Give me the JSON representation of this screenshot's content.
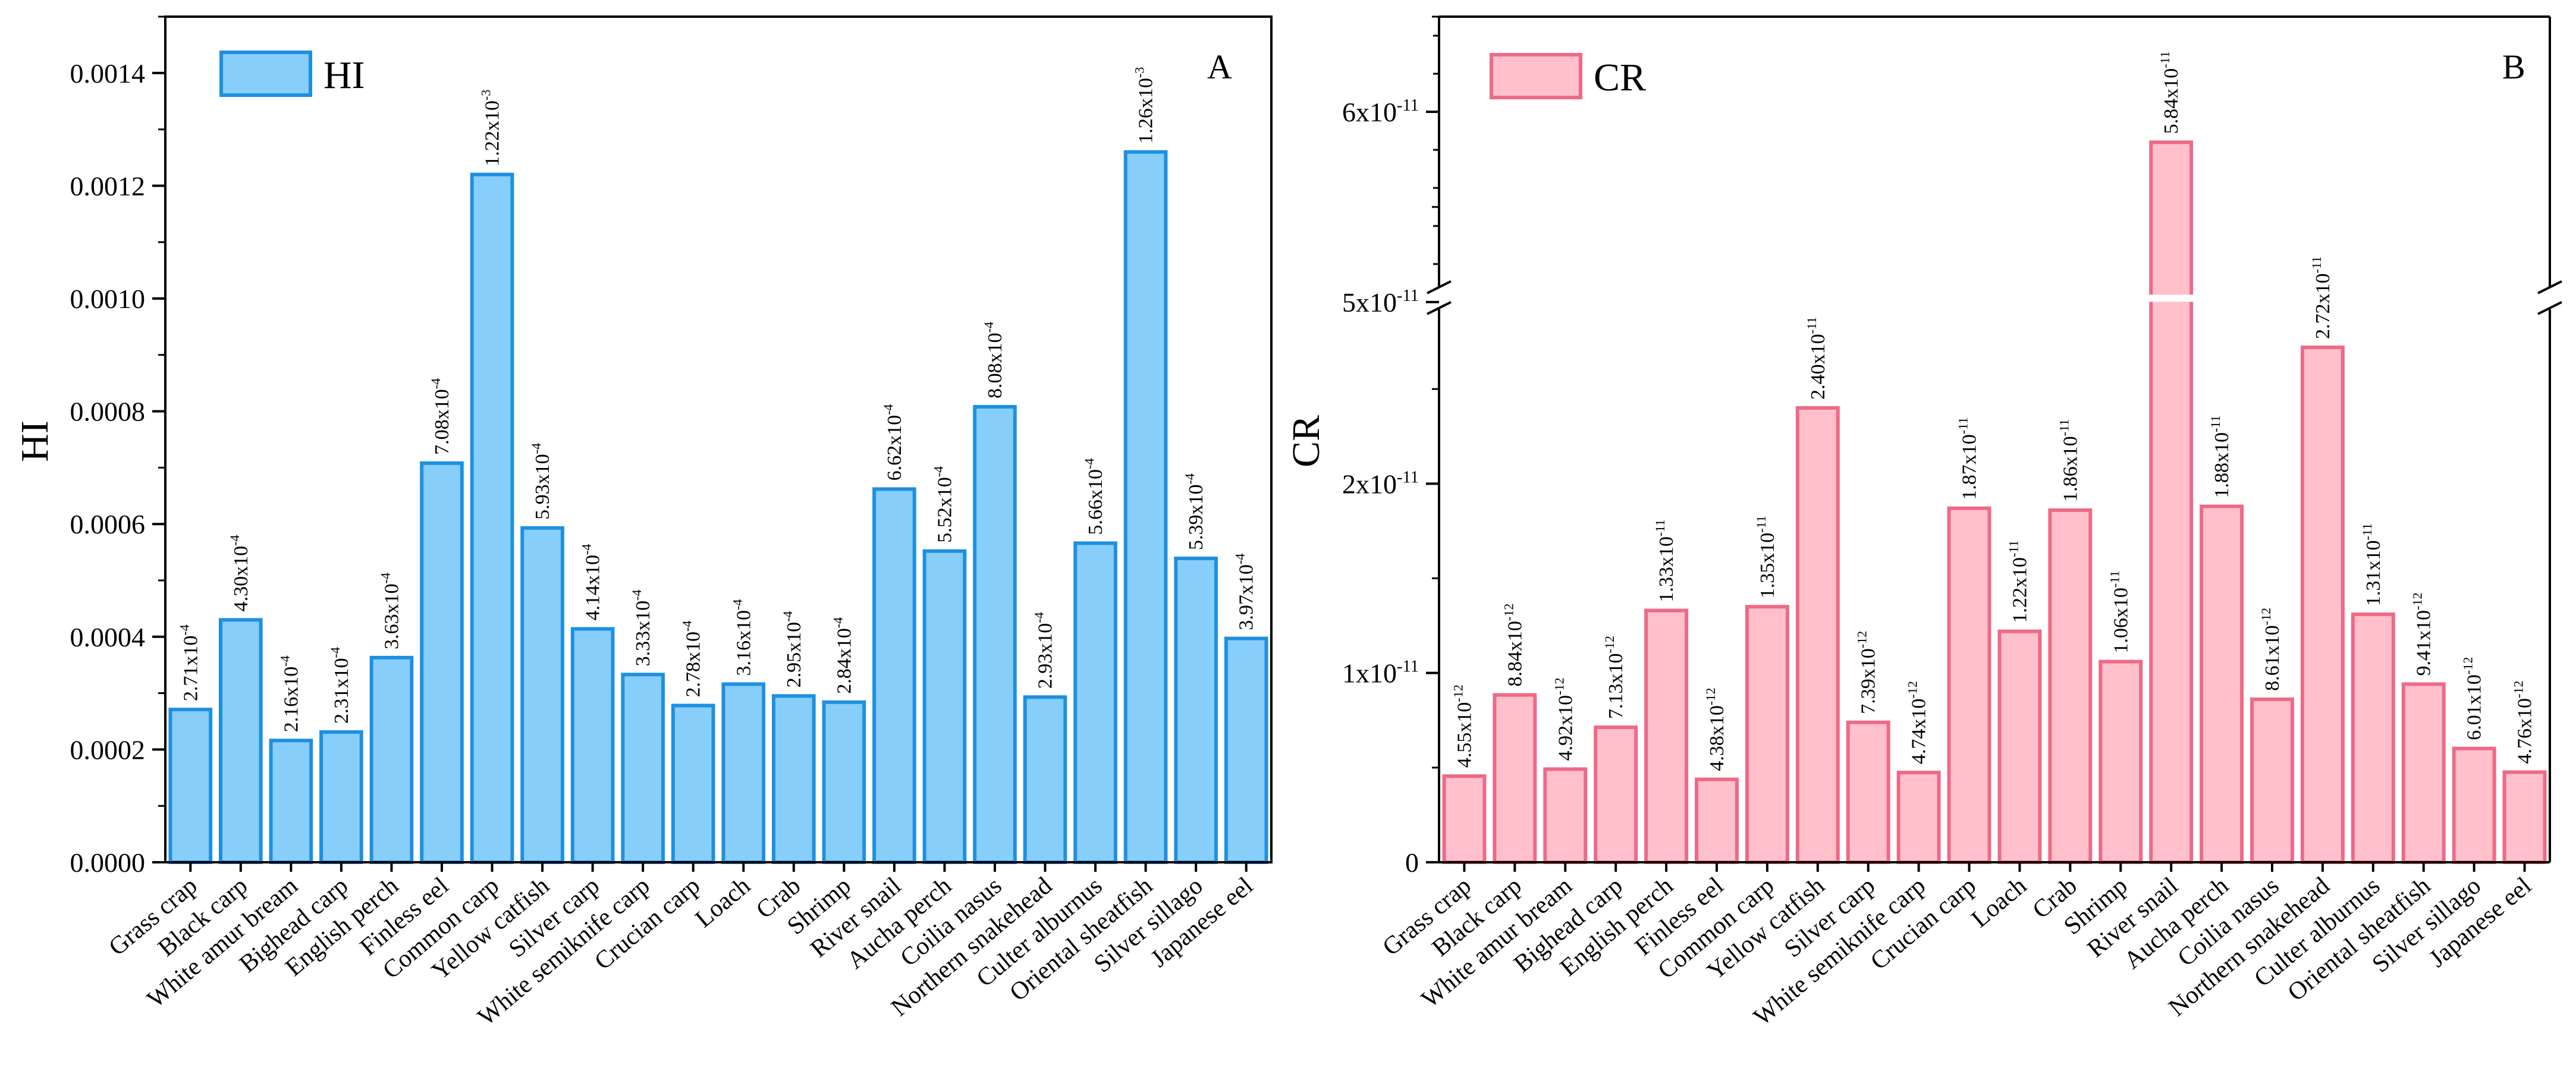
{
  "chart_data": [
    {
      "type": "bar",
      "panel": "A",
      "legend": "HI",
      "ylabel": "HI",
      "xlabel": "",
      "ylim": [
        0,
        0.0015
      ],
      "yticks": [
        0,
        0.0002,
        0.0004,
        0.0006,
        0.0008,
        0.001,
        0.0012,
        0.0014
      ],
      "ytick_labels": [
        "0.0000",
        "0.0002",
        "0.0004",
        "0.0006",
        "0.0008",
        "0.0010",
        "0.0012",
        "0.0014"
      ],
      "categories": [
        "Grass crap",
        "Black carp",
        "White amur bream",
        "Bighead carp",
        "English perch",
        "Finless eel",
        "Common carp",
        "Yellow catfish",
        "Silver carp",
        "White semiknife carp",
        "Crucian carp",
        "Loach",
        "Crab",
        "Shrimp",
        "River snail",
        "Aucha perch",
        "Coilia nasus",
        "Northern snakehead",
        "Culter alburnus",
        "Oriental sheatfish",
        "Silver sillago",
        "Japanese eel"
      ],
      "values": [
        0.000271,
        0.00043,
        0.000216,
        0.000231,
        0.000363,
        0.000708,
        0.00122,
        0.000593,
        0.000414,
        0.000333,
        0.000278,
        0.000316,
        0.000295,
        0.000284,
        0.000662,
        0.000552,
        0.000808,
        0.000293,
        0.000566,
        0.00126,
        0.000539,
        0.000397
      ],
      "label_mantissas": [
        "2.71x10",
        "4.30x10",
        "2.16x10",
        "2.31x10",
        "3.63x10",
        "7.08x10",
        "1.22x10",
        "5.93x10",
        "4.14x10",
        "3.33x10",
        "2.78x10",
        "3.16x10",
        "2.95x10",
        "2.84x10",
        "6.62x10",
        "5.52x10",
        "8.08x10",
        "2.93x10",
        "5.66x10",
        "1.26x10",
        "5.39x10",
        "3.97x10"
      ],
      "label_exponents": [
        "-4",
        "-4",
        "-4",
        "-4",
        "-4",
        "-4",
        "-3",
        "-4",
        "-4",
        "-4",
        "-4",
        "-4",
        "-4",
        "-4",
        "-4",
        "-4",
        "-4",
        "-4",
        "-4",
        "-3",
        "-4",
        "-4"
      ],
      "colors": {
        "fill": "#87CEFA",
        "stroke": "#1E90E0"
      }
    },
    {
      "type": "bar",
      "panel": "B",
      "legend": "CR",
      "ylabel": "CR",
      "xlabel": "",
      "axis_break": {
        "lower": [
          0,
          3e-11
        ],
        "upper": [
          5e-11,
          6.5e-11
        ]
      },
      "yticks": [
        0,
        1e-11,
        2e-11,
        5e-11,
        6e-11
      ],
      "ytick_mantissas": [
        "0",
        "1x10",
        "2x10",
        "5x10",
        "6x10"
      ],
      "ytick_exponents": [
        "",
        "-11",
        "-11",
        "-11",
        "-11"
      ],
      "categories": [
        "Grass crap",
        "Black carp",
        "White amur bream",
        "Bighead carp",
        "English perch",
        "Finless eel",
        "Common carp",
        "Yellow catfish",
        "Silver carp",
        "White semiknife carp",
        "Crucian carp",
        "Loach",
        "Crab",
        "Shrimp",
        "River snail",
        "Aucha perch",
        "Coilia nasus",
        "Northern snakehead",
        "Culter alburnus",
        "Oriental sheatfish",
        "Silver sillago",
        "Japanese eel"
      ],
      "values": [
        4.55e-12,
        8.84e-12,
        4.92e-12,
        7.13e-12,
        1.33e-11,
        4.38e-12,
        1.35e-11,
        2.4e-11,
        7.39e-12,
        4.74e-12,
        1.87e-11,
        1.22e-11,
        1.86e-11,
        1.06e-11,
        5.84e-11,
        1.88e-11,
        8.61e-12,
        2.72e-11,
        1.31e-11,
        9.41e-12,
        6.01e-12,
        4.76e-12
      ],
      "label_mantissas": [
        "4.55x10",
        "8.84x10",
        "4.92x10",
        "7.13x10",
        "1.33x10",
        "4.38x10",
        "1.35x10",
        "2.40x10",
        "7.39x10",
        "4.74x10",
        "1.87x10",
        "1.22x10",
        "1.86x10",
        "1.06x10",
        "5.84x10",
        "1.88x10",
        "8.61x10",
        "2.72x10",
        "1.31x10",
        "9.41x10",
        "6.01x10",
        "4.76x10"
      ],
      "label_exponents": [
        "-12",
        "-12",
        "-12",
        "-12",
        "-11",
        "-12",
        "-11",
        "-11",
        "-12",
        "-12",
        "-11",
        "-11",
        "-11",
        "-11",
        "-11",
        "-11",
        "-12",
        "-11",
        "-11",
        "-12",
        "-12",
        "-12"
      ],
      "colors": {
        "fill": "#FFC0CB",
        "stroke": "#EE6A86"
      }
    }
  ]
}
